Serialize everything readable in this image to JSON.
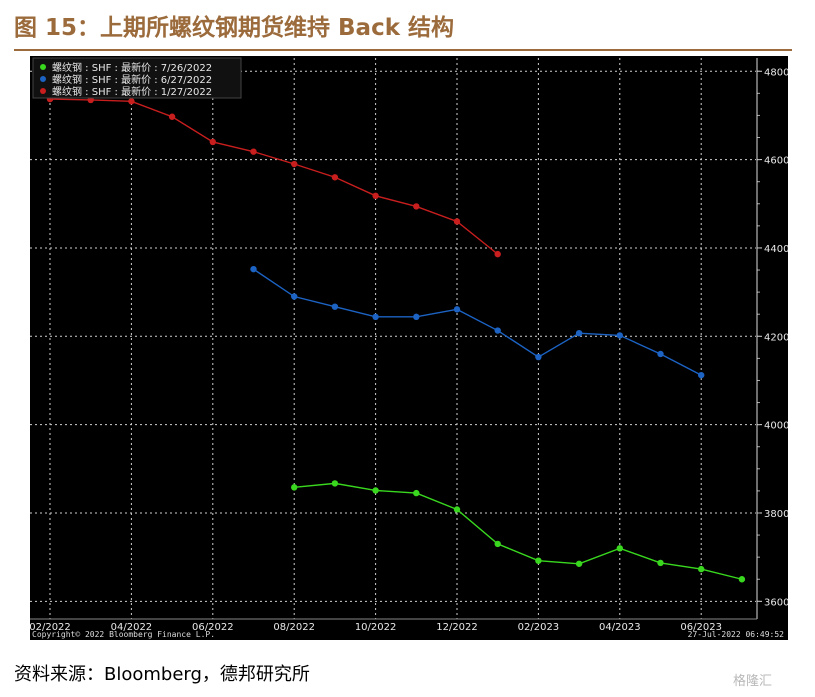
{
  "figure_title": "图 15：上期所螺纹钢期货维持 Back 结构",
  "source_text": "资料来源：Bloomberg，德邦研究所",
  "watermark_text": "格隆汇",
  "colors": {
    "title": "#9c6b3c",
    "bg": "#000000",
    "grid": "#cfcfcf",
    "green": "#39d81f",
    "blue": "#1c63c4",
    "red": "#c81e1e"
  },
  "chart_data": {
    "type": "line",
    "title": "",
    "xlabel": "",
    "ylabel": "",
    "ylim": [
      3560,
      4830
    ],
    "yticks": [
      3600,
      3800,
      4000,
      4200,
      4400,
      4600,
      4800
    ],
    "ytick_labels": [
      "3600",
      "3800",
      "4000",
      "4200",
      "4400",
      "4600",
      "4800"
    ],
    "x_months": [
      "02/2022",
      "03/2022",
      "04/2022",
      "05/2022",
      "06/2022",
      "07/2022",
      "08/2022",
      "09/2022",
      "10/2022",
      "11/2022",
      "12/2022",
      "01/2023",
      "02/2023",
      "03/2023",
      "04/2023",
      "05/2023",
      "06/2023",
      "07/2023"
    ],
    "xtick_labels": [
      "02/2022",
      "04/2022",
      "06/2022",
      "08/2022",
      "10/2022",
      "12/2022",
      "02/2023",
      "04/2023",
      "06/2023"
    ],
    "grid": true,
    "legend_position": "top-left",
    "series": [
      {
        "name": "螺纹钢 : SHF : 最新价 : 7/26/2022",
        "color": "#39d81f",
        "x": [
          "08/2022",
          "09/2022",
          "10/2022",
          "11/2022",
          "12/2022",
          "01/2023",
          "02/2023",
          "03/2023",
          "04/2023",
          "05/2023",
          "06/2023",
          "07/2023"
        ],
        "values": [
          3858,
          3867,
          3851,
          3845,
          3808,
          3730,
          3692,
          3685,
          3720,
          3687,
          3673,
          3650
        ]
      },
      {
        "name": "螺纹钢 : SHF : 最新价 : 6/27/2022",
        "color": "#1c63c4",
        "x": [
          "07/2022",
          "08/2022",
          "09/2022",
          "10/2022",
          "11/2022",
          "12/2022",
          "01/2023",
          "02/2023",
          "03/2023",
          "04/2023",
          "05/2023",
          "06/2023"
        ],
        "values": [
          4352,
          4290,
          4267,
          4244,
          4244,
          4261,
          4213,
          4153,
          4207,
          4202,
          4160,
          4112
        ]
      },
      {
        "name": "螺纹钢 : SHF : 最新价 : 1/27/2022",
        "color": "#c81e1e",
        "x": [
          "02/2022",
          "03/2022",
          "04/2022",
          "05/2022",
          "06/2022",
          "07/2022",
          "08/2022",
          "09/2022",
          "10/2022",
          "11/2022",
          "12/2022",
          "01/2023"
        ],
        "values": [
          4737,
          4735,
          4732,
          4697,
          4640,
          4618,
          4590,
          4560,
          4518,
          4494,
          4460,
          4386
        ]
      }
    ],
    "footer_left": "Copyright© 2022 Bloomberg Finance L.P.",
    "footer_right": "27-Jul-2022 06:49:52"
  }
}
